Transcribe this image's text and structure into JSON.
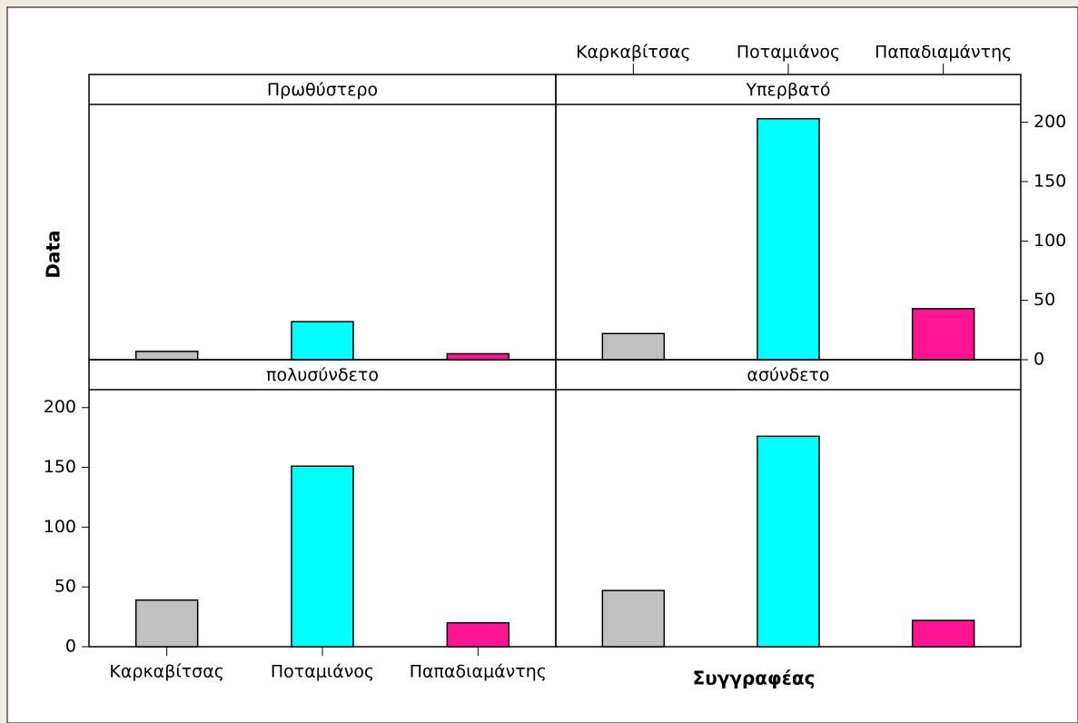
{
  "ylabel": "Data",
  "xlabel": "Συγγραφέας",
  "chart_data": [
    {
      "type": "bar",
      "title": "Πρωθύστερο",
      "categories": [
        "Καρκαβίτσας",
        "Ποταμιάνος",
        "Παπαδιαμάντης"
      ],
      "values": [
        7,
        32,
        5
      ],
      "colors": [
        "#c0c0c0",
        "#00ffff",
        "#ff1493"
      ],
      "ylim": [
        0,
        215
      ]
    },
    {
      "type": "bar",
      "title": "Υπερβατό",
      "categories": [
        "Καρκαβίτσας",
        "Ποταμιάνος",
        "Παπαδιαμάντης"
      ],
      "values": [
        22,
        203,
        43
      ],
      "colors": [
        "#c0c0c0",
        "#00ffff",
        "#ff1493"
      ],
      "ylim": [
        0,
        215
      ],
      "yticks": [
        0,
        50,
        100,
        150,
        200
      ]
    },
    {
      "type": "bar",
      "title": "πολυσύνδετο",
      "categories": [
        "Καρκαβίτσας",
        "Ποταμιάνος",
        "Παπαδιαμάντης"
      ],
      "values": [
        39,
        151,
        20
      ],
      "colors": [
        "#c0c0c0",
        "#00ffff",
        "#ff1493"
      ],
      "ylim": [
        0,
        215
      ],
      "yticks": [
        0,
        50,
        100,
        150,
        200
      ]
    },
    {
      "type": "bar",
      "title": "ασύνδετο",
      "categories": [
        "Καρκαβίτσας",
        "Ποταμιάνος",
        "Παπαδιαμάντης"
      ],
      "values": [
        47,
        176,
        22
      ],
      "colors": [
        "#c0c0c0",
        "#00ffff",
        "#ff1493"
      ],
      "ylim": [
        0,
        215
      ]
    }
  ]
}
